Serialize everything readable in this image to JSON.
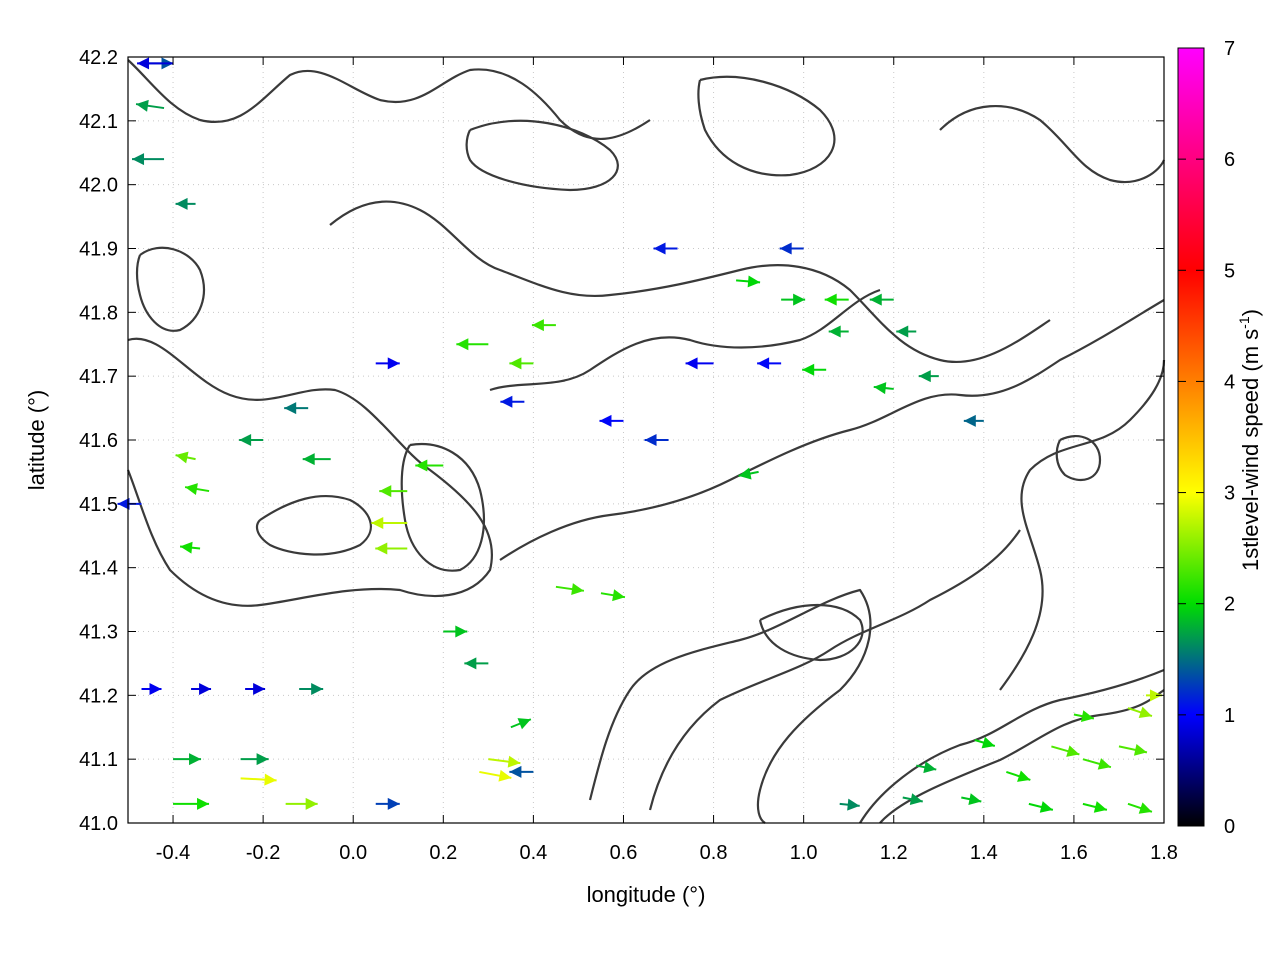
{
  "chart_data": {
    "type": "vector-field",
    "xlabel": "longitude (°)",
    "ylabel": "latitude (°)",
    "xlim": [
      -0.5,
      1.8
    ],
    "ylim": [
      41.0,
      42.2
    ],
    "x_ticks": [
      "-0.4",
      "-0.2",
      "0.0",
      "0.2",
      "0.4",
      "0.6",
      "0.8",
      "1.0",
      "1.2",
      "1.4",
      "1.6",
      "1.8"
    ],
    "y_ticks": [
      "41.0",
      "41.1",
      "41.2",
      "41.3",
      "41.4",
      "41.5",
      "41.6",
      "41.7",
      "41.8",
      "41.9",
      "42.0",
      "42.1",
      "42.2"
    ],
    "grid": true,
    "colorbar": {
      "label": "1stlevel-wind speed (m s",
      "label_sup": "-1",
      "label_end": ")",
      "range": [
        0,
        7
      ],
      "ticks": [
        "0",
        "1",
        "2",
        "3",
        "4",
        "5",
        "6",
        "7"
      ],
      "colors": [
        "#000000",
        "#0000ff",
        "#00dd00",
        "#ffff00",
        "#ff7f00",
        "#ff0000",
        "#ff00ff"
      ]
    },
    "vectors": [
      {
        "lon": -0.47,
        "lat": 42.19,
        "u": 0.8,
        "v": 0.0,
        "speed": 1.6
      },
      {
        "lon": -0.4,
        "lat": 42.19,
        "u": -0.9,
        "v": 0.0,
        "speed": 1.0
      },
      {
        "lon": -0.42,
        "lat": 42.12,
        "u": -0.7,
        "v": 0.1,
        "speed": 2.0
      },
      {
        "lon": -0.42,
        "lat": 42.04,
        "u": -0.8,
        "v": 0.0,
        "speed": 1.9
      },
      {
        "lon": -0.35,
        "lat": 41.97,
        "u": -0.5,
        "v": 0.0,
        "speed": 1.9
      },
      {
        "lon": -0.47,
        "lat": 41.5,
        "u": -0.6,
        "v": 0.0,
        "speed": 1.3
      },
      {
        "lon": -0.35,
        "lat": 41.57,
        "u": -0.5,
        "v": 0.1,
        "speed": 2.8
      },
      {
        "lon": -0.32,
        "lat": 41.52,
        "u": -0.6,
        "v": 0.1,
        "speed": 2.5
      },
      {
        "lon": -0.34,
        "lat": 41.43,
        "u": -0.5,
        "v": 0.05,
        "speed": 2.4
      },
      {
        "lon": -0.2,
        "lat": 41.6,
        "u": -0.6,
        "v": 0.0,
        "speed": 2.0
      },
      {
        "lon": -0.1,
        "lat": 41.65,
        "u": -0.6,
        "v": 0.0,
        "speed": 1.8
      },
      {
        "lon": -0.05,
        "lat": 41.57,
        "u": -0.7,
        "v": 0.0,
        "speed": 2.1
      },
      {
        "lon": -0.47,
        "lat": 41.21,
        "u": 0.5,
        "v": 0.0,
        "speed": 1.1
      },
      {
        "lon": -0.36,
        "lat": 41.21,
        "u": 0.5,
        "v": 0.0,
        "speed": 1.0
      },
      {
        "lon": -0.24,
        "lat": 41.21,
        "u": 0.5,
        "v": 0.0,
        "speed": 1.0
      },
      {
        "lon": -0.12,
        "lat": 41.21,
        "u": 0.6,
        "v": 0.0,
        "speed": 1.9
      },
      {
        "lon": -0.4,
        "lat": 41.1,
        "u": 0.7,
        "v": 0.0,
        "speed": 2.1
      },
      {
        "lon": -0.25,
        "lat": 41.1,
        "u": 0.7,
        "v": 0.0,
        "speed": 2.0
      },
      {
        "lon": -0.4,
        "lat": 41.03,
        "u": 0.9,
        "v": 0.0,
        "speed": 2.4
      },
      {
        "lon": -0.25,
        "lat": 41.07,
        "u": 0.9,
        "v": -0.05,
        "speed": 3.4
      },
      {
        "lon": -0.15,
        "lat": 41.03,
        "u": 0.8,
        "v": 0.0,
        "speed": 3.0
      },
      {
        "lon": 0.05,
        "lat": 41.03,
        "u": 0.6,
        "v": 0.0,
        "speed": 1.5
      },
      {
        "lon": 0.12,
        "lat": 41.47,
        "u": -0.9,
        "v": 0.0,
        "speed": 3.2
      },
      {
        "lon": 0.12,
        "lat": 41.43,
        "u": -0.8,
        "v": 0.0,
        "speed": 3.0
      },
      {
        "lon": 0.12,
        "lat": 41.52,
        "u": -0.7,
        "v": 0.0,
        "speed": 2.7
      },
      {
        "lon": 0.2,
        "lat": 41.56,
        "u": -0.7,
        "v": 0.0,
        "speed": 2.5
      },
      {
        "lon": 0.05,
        "lat": 41.72,
        "u": 0.6,
        "v": 0.0,
        "speed": 1.1
      },
      {
        "lon": 0.3,
        "lat": 41.75,
        "u": -0.8,
        "v": 0.0,
        "speed": 2.5
      },
      {
        "lon": 0.4,
        "lat": 41.72,
        "u": -0.6,
        "v": 0.0,
        "speed": 2.7
      },
      {
        "lon": 0.45,
        "lat": 41.78,
        "u": -0.6,
        "v": 0.0,
        "speed": 2.6
      },
      {
        "lon": 0.38,
        "lat": 41.66,
        "u": -0.6,
        "v": 0.0,
        "speed": 1.3
      },
      {
        "lon": 0.3,
        "lat": 41.1,
        "u": 0.8,
        "v": -0.1,
        "speed": 3.2
      },
      {
        "lon": 0.28,
        "lat": 41.08,
        "u": 0.8,
        "v": -0.15,
        "speed": 3.4
      },
      {
        "lon": 0.4,
        "lat": 41.08,
        "u": -0.6,
        "v": 0.0,
        "speed": 1.6
      },
      {
        "lon": 0.35,
        "lat": 41.15,
        "u": 0.5,
        "v": 0.2,
        "speed": 2.2
      },
      {
        "lon": 0.45,
        "lat": 41.37,
        "u": 0.7,
        "v": -0.1,
        "speed": 2.6
      },
      {
        "lon": 0.55,
        "lat": 41.36,
        "u": 0.6,
        "v": -0.1,
        "speed": 2.5
      },
      {
        "lon": 0.2,
        "lat": 41.3,
        "u": 0.6,
        "v": 0.0,
        "speed": 2.2
      },
      {
        "lon": 0.3,
        "lat": 41.25,
        "u": -0.6,
        "v": 0.0,
        "speed": 2.0
      },
      {
        "lon": 0.8,
        "lat": 41.72,
        "u": -0.7,
        "v": 0.0,
        "speed": 1.1
      },
      {
        "lon": 0.95,
        "lat": 41.72,
        "u": -0.6,
        "v": 0.0,
        "speed": 1.2
      },
      {
        "lon": 0.85,
        "lat": 41.85,
        "u": 0.6,
        "v": -0.05,
        "speed": 2.3
      },
      {
        "lon": 0.95,
        "lat": 41.82,
        "u": 0.6,
        "v": 0.0,
        "speed": 2.2
      },
      {
        "lon": 1.1,
        "lat": 41.82,
        "u": -0.6,
        "v": 0.0,
        "speed": 2.4
      },
      {
        "lon": 1.2,
        "lat": 41.82,
        "u": -0.6,
        "v": 0.0,
        "speed": 2.1
      },
      {
        "lon": 1.1,
        "lat": 41.77,
        "u": -0.5,
        "v": 0.0,
        "speed": 2.1
      },
      {
        "lon": 1.25,
        "lat": 41.77,
        "u": -0.5,
        "v": 0.0,
        "speed": 2.0
      },
      {
        "lon": 1.05,
        "lat": 41.71,
        "u": -0.6,
        "v": 0.0,
        "speed": 2.3
      },
      {
        "lon": 1.2,
        "lat": 41.68,
        "u": -0.5,
        "v": 0.05,
        "speed": 2.2
      },
      {
        "lon": 1.3,
        "lat": 41.7,
        "u": -0.5,
        "v": 0.0,
        "speed": 2.0
      },
      {
        "lon": 1.4,
        "lat": 41.63,
        "u": -0.5,
        "v": 0.0,
        "speed": 1.7
      },
      {
        "lon": 0.9,
        "lat": 41.55,
        "u": -0.5,
        "v": -0.1,
        "speed": 2.2
      },
      {
        "lon": 1.0,
        "lat": 41.9,
        "u": -0.6,
        "v": 0.0,
        "speed": 1.4
      },
      {
        "lon": 0.72,
        "lat": 41.9,
        "u": -0.6,
        "v": 0.0,
        "speed": 1.3
      },
      {
        "lon": 0.6,
        "lat": 41.63,
        "u": -0.6,
        "v": 0.0,
        "speed": 1.2
      },
      {
        "lon": 0.7,
        "lat": 41.6,
        "u": -0.6,
        "v": 0.0,
        "speed": 1.4
      },
      {
        "lon": 1.55,
        "lat": 41.12,
        "u": 0.7,
        "v": -0.2,
        "speed": 2.7
      },
      {
        "lon": 1.62,
        "lat": 41.1,
        "u": 0.7,
        "v": -0.2,
        "speed": 2.6
      },
      {
        "lon": 1.7,
        "lat": 41.12,
        "u": 0.7,
        "v": -0.15,
        "speed": 2.7
      },
      {
        "lon": 1.72,
        "lat": 41.18,
        "u": 0.6,
        "v": -0.2,
        "speed": 3.0
      },
      {
        "lon": 1.76,
        "lat": 41.2,
        "u": 0.4,
        "v": 0.0,
        "speed": 3.2
      },
      {
        "lon": 1.45,
        "lat": 41.08,
        "u": 0.6,
        "v": -0.2,
        "speed": 2.4
      },
      {
        "lon": 1.5,
        "lat": 41.03,
        "u": 0.6,
        "v": -0.15,
        "speed": 2.3
      },
      {
        "lon": 1.62,
        "lat": 41.03,
        "u": 0.6,
        "v": -0.15,
        "speed": 2.4
      },
      {
        "lon": 1.72,
        "lat": 41.03,
        "u": 0.6,
        "v": -0.2,
        "speed": 2.5
      },
      {
        "lon": 1.35,
        "lat": 41.04,
        "u": 0.5,
        "v": -0.1,
        "speed": 2.2
      },
      {
        "lon": 1.22,
        "lat": 41.04,
        "u": 0.5,
        "v": -0.1,
        "speed": 2.0
      },
      {
        "lon": 1.08,
        "lat": 41.03,
        "u": 0.5,
        "v": -0.05,
        "speed": 1.9
      },
      {
        "lon": 1.38,
        "lat": 41.13,
        "u": 0.5,
        "v": -0.15,
        "speed": 2.3
      },
      {
        "lon": 1.25,
        "lat": 41.09,
        "u": 0.5,
        "v": -0.1,
        "speed": 2.1
      },
      {
        "lon": 1.6,
        "lat": 41.17,
        "u": 0.5,
        "v": -0.1,
        "speed": 2.5
      }
    ]
  }
}
